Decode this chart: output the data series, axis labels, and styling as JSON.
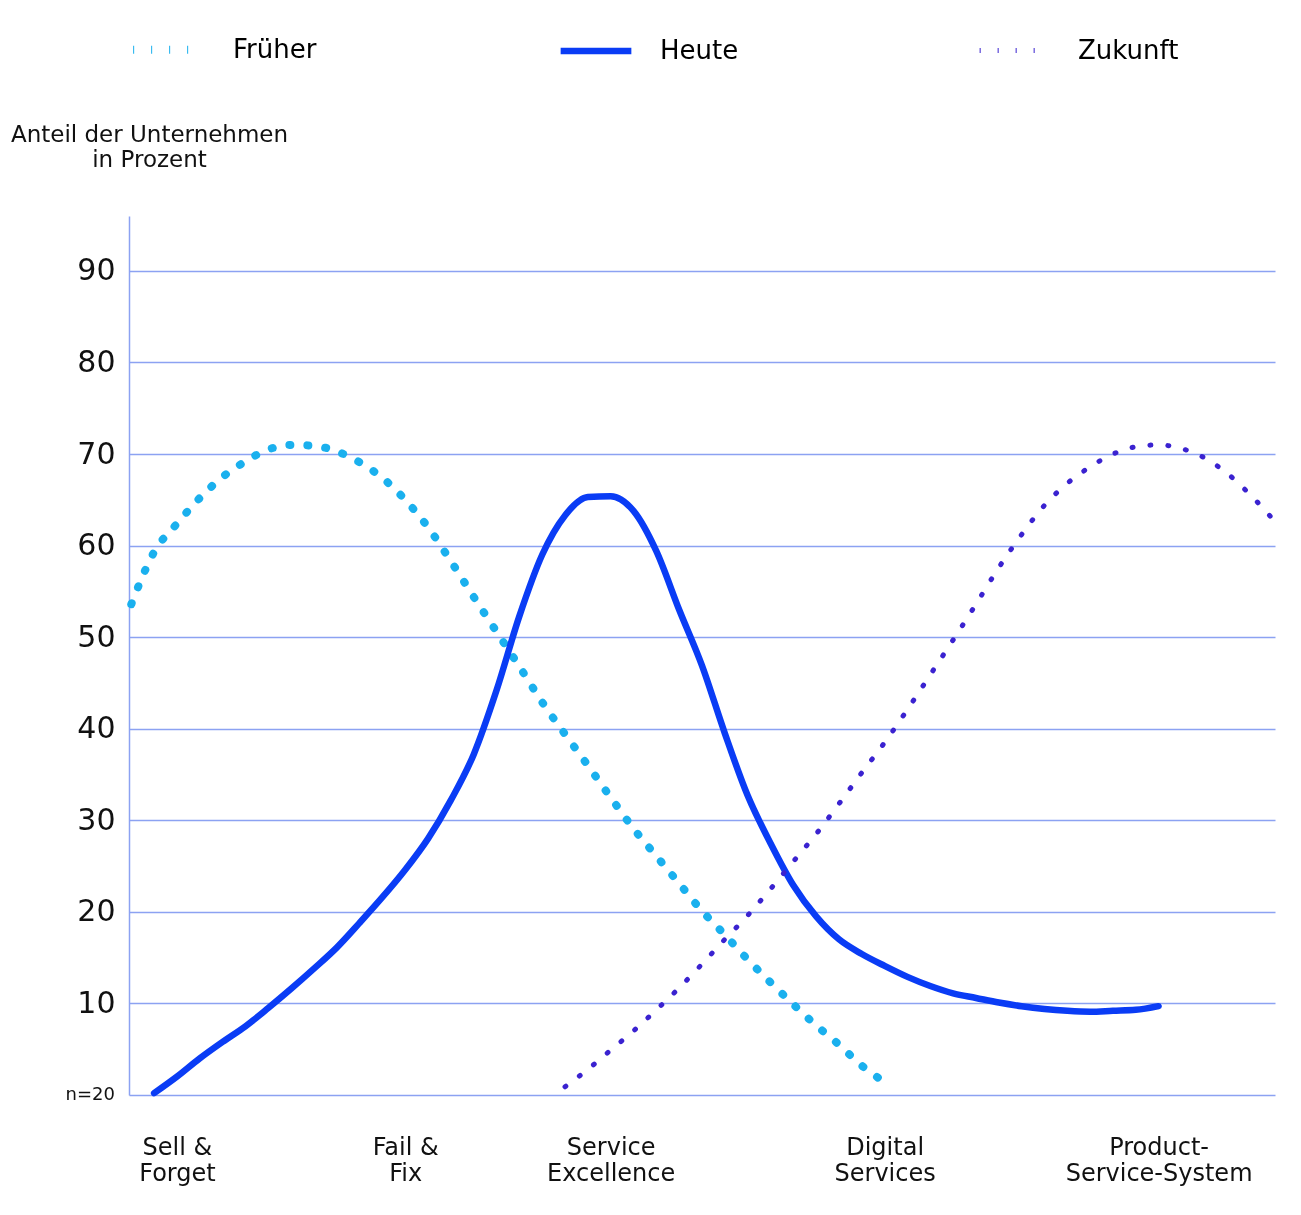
{
  "chart_data": {
    "type": "line",
    "ylabel": "Anteil der Unternehmen\nin Prozent",
    "categories": [
      null,
      null,
      "Sell &\nForget",
      null,
      null,
      null,
      null,
      null,
      null,
      null,
      null,
      null,
      "Fail &\nFix",
      null,
      null,
      null,
      null,
      null,
      null,
      null,
      null,
      "Service\nExcellence",
      null,
      null,
      null,
      null,
      null,
      null,
      null,
      null,
      null,
      null,
      null,
      "Digital\nServices",
      null,
      null,
      null,
      null,
      null,
      null,
      null,
      null,
      null,
      null,
      null,
      "Product-\nService-System",
      null,
      null,
      null,
      null,
      null
    ],
    "ylim": [
      0,
      96
    ],
    "yticks": [
      {
        "value": 0,
        "label": null
      },
      10,
      20,
      30,
      40,
      50,
      60,
      70,
      80,
      90
    ],
    "annotations": [
      "n=20"
    ],
    "grid": "y",
    "legend": "top",
    "marker": "none",
    "series": [
      {
        "name": "Früher",
        "color": "#1ab0ee",
        "line_style": "dotted",
        "values": [
          53.6,
          59.3,
          62.4,
          65.2,
          67.5,
          69.2,
          70.5,
          71.0,
          70.9,
          70.3,
          69.1,
          67.4,
          65.0,
          62.0,
          58.3,
          54.4,
          50.6,
          46.8,
          42.9,
          39.4,
          36.0,
          32.5,
          29.1,
          26.1,
          23.1,
          20.1,
          17.5,
          14.8,
          12.3,
          9.9,
          7.6,
          5.5,
          3.2,
          1.4,
          null,
          null,
          null,
          null,
          null,
          null,
          null,
          null,
          null,
          null,
          null,
          null,
          null,
          null,
          null,
          null,
          null
        ]
      },
      {
        "name": "Heute",
        "color": "#0a3cf5",
        "line_style": "solid",
        "values": [
          null,
          0.2,
          2.0,
          4.0,
          5.8,
          7.5,
          9.5,
          11.6,
          13.8,
          16.1,
          18.8,
          21.6,
          24.6,
          28.0,
          32.2,
          37.2,
          44.2,
          52.3,
          59.0,
          63.3,
          65.3,
          65.4,
          63.8,
          59.4,
          53.0,
          46.9,
          39.5,
          32.7,
          27.5,
          22.9,
          19.5,
          17.0,
          15.4,
          14.1,
          12.9,
          11.9,
          11.1,
          10.6,
          10.1,
          9.7,
          9.4,
          9.2,
          9.1,
          9.2,
          9.3,
          9.7,
          null,
          null,
          null,
          null,
          null
        ]
      },
      {
        "name": "Zukunft",
        "color": "#3a22d0",
        "line_style": "dotted",
        "values": [
          null,
          null,
          null,
          null,
          null,
          null,
          null,
          null,
          null,
          null,
          null,
          null,
          null,
          null,
          null,
          null,
          null,
          null,
          null,
          0.9,
          2.8,
          4.9,
          7.0,
          9.3,
          11.7,
          14.3,
          17.0,
          19.6,
          22.5,
          25.5,
          28.5,
          31.8,
          35.2,
          38.5,
          42.1,
          45.9,
          49.7,
          53.6,
          57.6,
          61.2,
          64.4,
          66.8,
          68.6,
          70.0,
          70.8,
          71.0,
          70.6,
          69.6,
          67.9,
          65.6,
          62.9
        ]
      }
    ]
  }
}
